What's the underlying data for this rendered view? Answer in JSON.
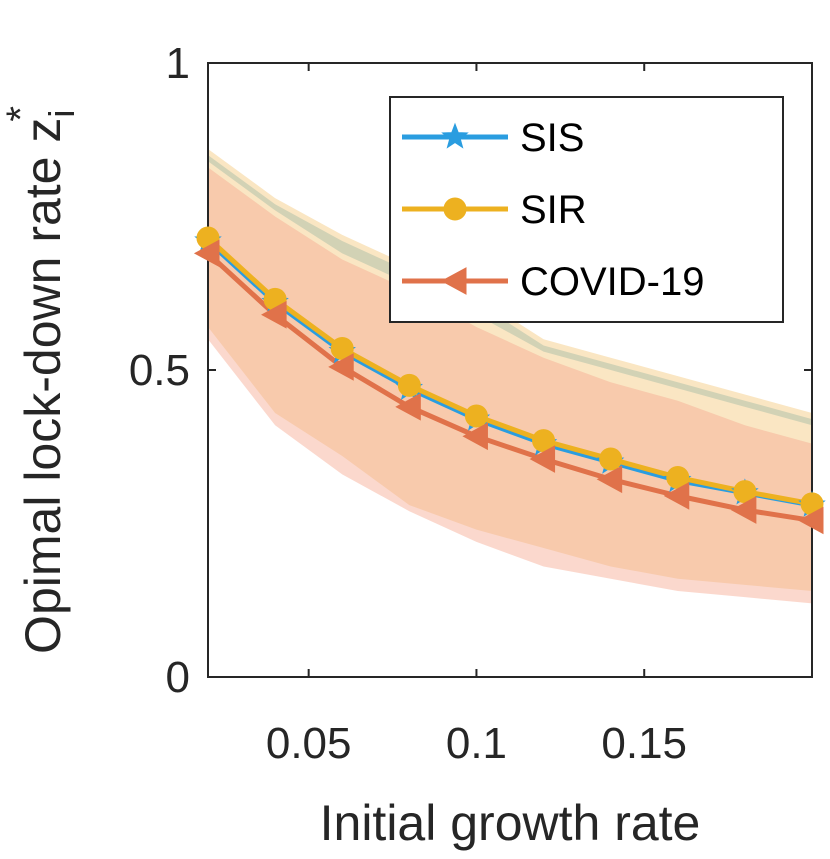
{
  "chart_data": {
    "type": "line",
    "title": "",
    "xlabel": "Initial growth rate",
    "ylabel": "Opimal lock-down rate z",
    "ylabel_subscript": "i",
    "ylabel_superscript": "*",
    "xlim": [
      0.02,
      0.2
    ],
    "ylim": [
      0,
      1
    ],
    "xticks": [
      0.05,
      0.1,
      0.15
    ],
    "xtick_labels": [
      "0.05",
      "0.1",
      "0.15"
    ],
    "yticks": [
      0,
      0.5,
      1
    ],
    "ytick_labels": [
      "0",
      "0.5",
      "1"
    ],
    "x": [
      0.02,
      0.04,
      0.06,
      0.08,
      0.1,
      0.12,
      0.14,
      0.16,
      0.18,
      0.2
    ],
    "legend_position": "top-right",
    "series": [
      {
        "name": "SIS",
        "color": "#2A9DE0",
        "marker": "star",
        "values": [
          0.71,
          0.61,
          0.53,
          0.47,
          0.42,
          0.38,
          0.35,
          0.32,
          0.3,
          0.28
        ],
        "band_upper": [
          0.85,
          0.77,
          0.71,
          0.66,
          0.61,
          0.54,
          0.51,
          0.48,
          0.45,
          0.42
        ],
        "band_lower": [
          0.84,
          0.76,
          0.69,
          0.64,
          0.59,
          0.53,
          0.5,
          0.47,
          0.44,
          0.41
        ],
        "band_color": "#5FAFC8"
      },
      {
        "name": "SIR",
        "color": "#EDB120",
        "marker": "circle",
        "values": [
          0.715,
          0.615,
          0.535,
          0.475,
          0.425,
          0.385,
          0.355,
          0.325,
          0.302,
          0.282
        ],
        "band_upper": [
          0.86,
          0.78,
          0.72,
          0.67,
          0.62,
          0.55,
          0.52,
          0.49,
          0.46,
          0.43
        ],
        "band_lower": [
          0.57,
          0.43,
          0.36,
          0.28,
          0.24,
          0.21,
          0.18,
          0.16,
          0.15,
          0.14
        ],
        "band_color": "#F3C77A"
      },
      {
        "name": "COVID-19",
        "color": "#E0724A",
        "marker": "triangle-left",
        "values": [
          0.69,
          0.59,
          0.505,
          0.44,
          0.392,
          0.355,
          0.322,
          0.295,
          0.272,
          0.255
        ],
        "band_upper": [
          0.83,
          0.75,
          0.68,
          0.63,
          0.57,
          0.52,
          0.48,
          0.45,
          0.41,
          0.38
        ],
        "band_lower": [
          0.55,
          0.41,
          0.33,
          0.27,
          0.22,
          0.18,
          0.16,
          0.14,
          0.13,
          0.12
        ],
        "band_color": "#F7A890"
      }
    ]
  }
}
